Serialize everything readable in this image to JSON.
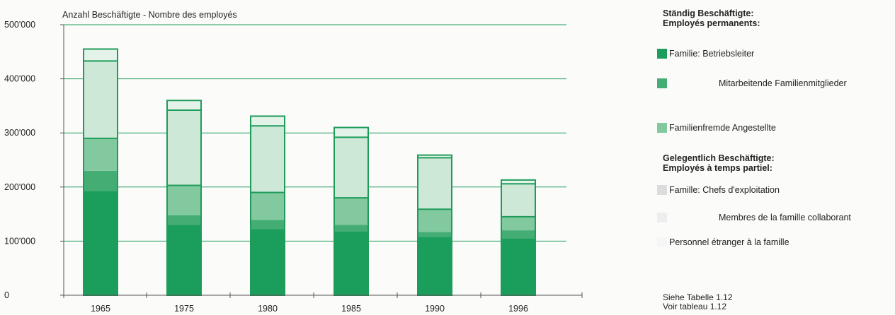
{
  "chart_data": {
    "type": "bar",
    "stacked": true,
    "ytitle": "Anzahl Beschäftigte  -  Nombre des employés",
    "categories": [
      "1965",
      "1975",
      "1980",
      "1985",
      "1990",
      "1996"
    ],
    "ylim": [
      0,
      500000
    ],
    "yticks": [
      0,
      100000,
      200000,
      300000,
      400000,
      500000
    ],
    "ytick_labels": [
      "0",
      "100'000",
      "200'000",
      "300'000",
      "400'000",
      "500'000"
    ],
    "grid": true,
    "series": [
      {
        "name": "Familie: Betriebsleiter",
        "group": "permanent",
        "color": "#1b9d5c",
        "values": [
          193000,
          130000,
          122000,
          118000,
          108000,
          105000
        ]
      },
      {
        "name": "Mitarbeitende Familienmitglieder",
        "group": "permanent",
        "color": "#43ad74",
        "values": [
          37000,
          18000,
          17000,
          12000,
          9000,
          15000
        ]
      },
      {
        "name": "Familienfremde Angestellte",
        "group": "permanent",
        "color": "#82c99f",
        "values": [
          60000,
          55000,
          51000,
          50000,
          42000,
          25000
        ]
      },
      {
        "name": "Famille: Chefs d'exploitation",
        "group": "partial",
        "color": "#cde8d6",
        "values": [
          143000,
          139000,
          123000,
          112000,
          95000,
          61000
        ]
      },
      {
        "name": "Membres de la famille collaborant",
        "group": "partial",
        "color": "#e4f3e9",
        "values": [
          22000,
          18000,
          18000,
          18000,
          5000,
          7000
        ]
      },
      {
        "name": "Personnel étranger à la famille",
        "group": "partial",
        "color": "#f3faf5",
        "values": [
          0,
          0,
          0,
          0,
          0,
          0
        ]
      }
    ]
  },
  "legend": {
    "permanent_title_de": "Ständig Beschäftigte:",
    "permanent_title_fr": "Employés permanents:",
    "partial_title_de": "Gelegentlich Beschäftigte:",
    "partial_title_fr": "Employés à temps partiel:",
    "items": [
      "Familie: Betriebsleiter",
      "Mitarbeitende Familienmitglieder",
      "Familienfremde Angestellte",
      "Famille: Chefs d'exploitation",
      "Membres de la famille collaborant",
      "Personnel étranger à la famille"
    ],
    "colors": [
      "#1b9d5c",
      "#43ad74",
      "#82c99f",
      "#dcdcdc",
      "#eeeeee",
      "#f6f6f6"
    ]
  },
  "note": {
    "de": "Siehe Tabelle 1.12",
    "fr": "Voir tableau 1.12"
  }
}
